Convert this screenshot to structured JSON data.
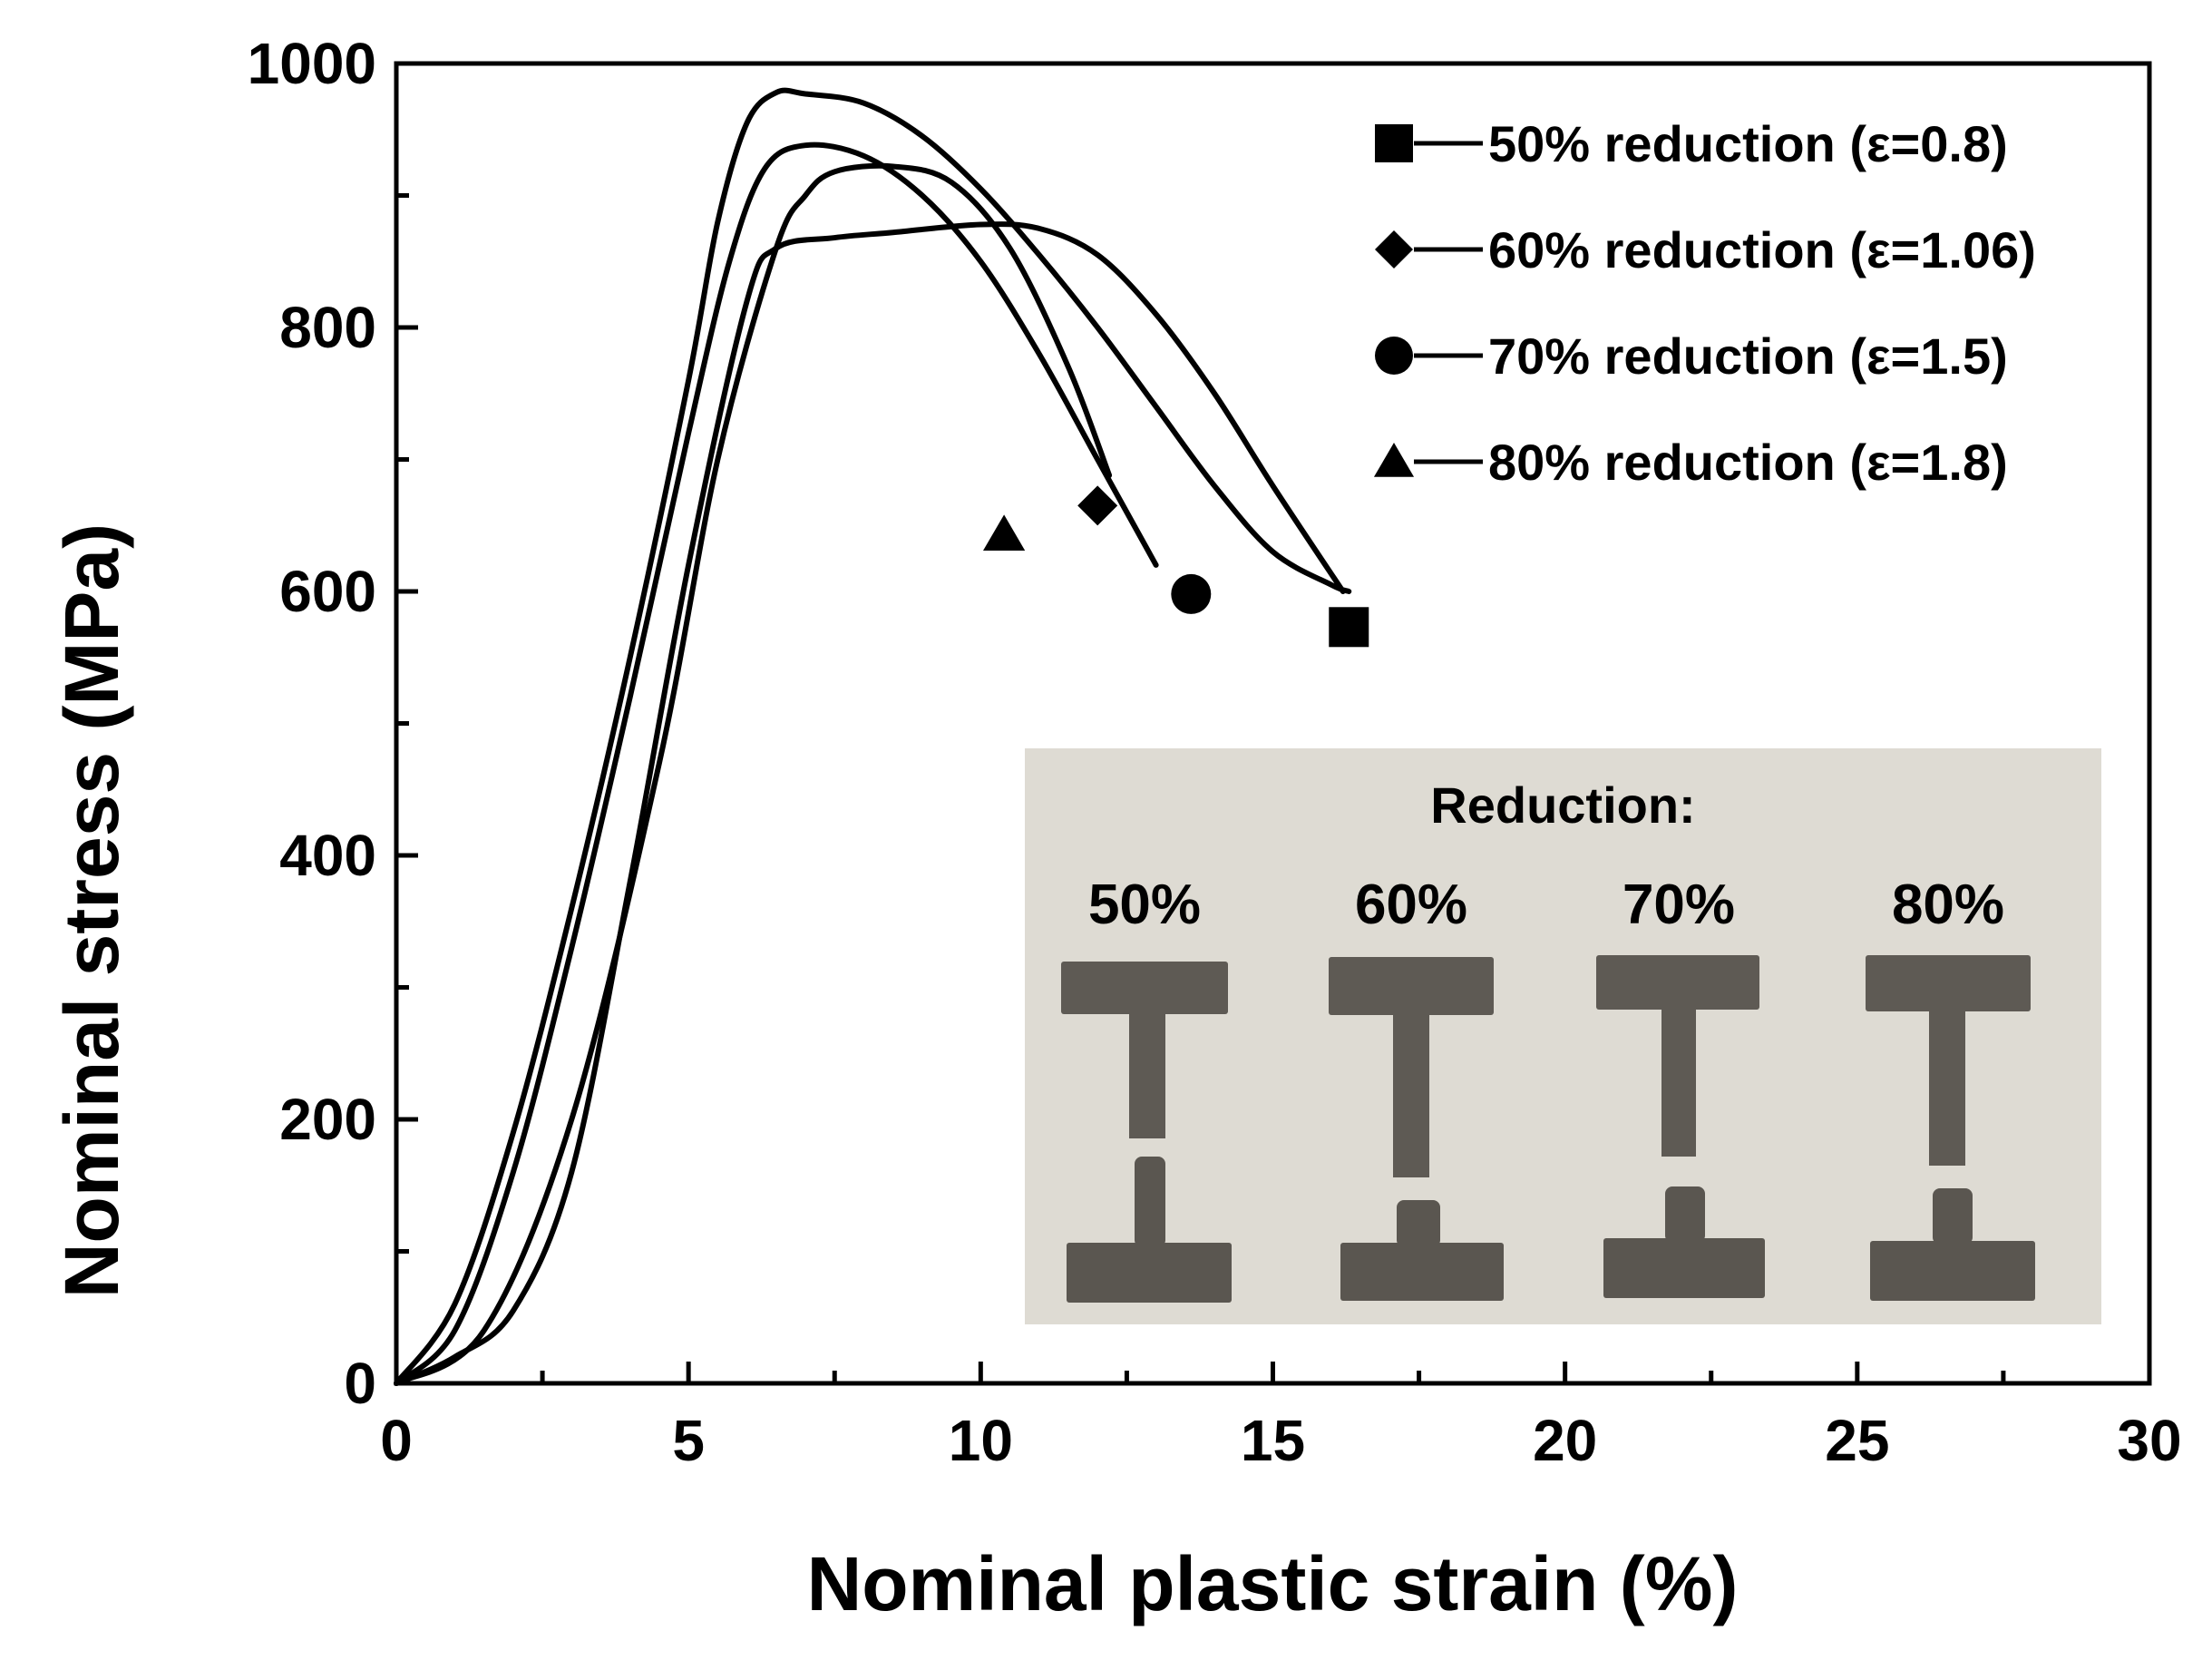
{
  "chart_data": {
    "type": "line",
    "xlabel": "Nominal plastic strain (%)",
    "ylabel": "Nominal stress (MPa)",
    "xlim": [
      0,
      30
    ],
    "ylim": [
      0,
      1000
    ],
    "x_ticks": [
      0,
      5,
      10,
      15,
      20,
      25,
      30
    ],
    "y_ticks": [
      0,
      200,
      400,
      600,
      800,
      1000
    ],
    "grid": false,
    "legend_position": "top-right",
    "series": [
      {
        "name": "50% reduction (ε=0.8)",
        "marker": "square",
        "marker_point": [
          16.3,
          573
        ],
        "x": [
          0,
          1,
          2,
          3,
          4,
          5,
          5.5,
          6.0,
          6.5,
          7,
          8,
          9,
          10,
          11,
          12,
          13,
          14,
          15,
          16,
          16.3
        ],
        "y": [
          0,
          60,
          190,
          360,
          550,
          760,
          880,
          955,
          978,
          977,
          970,
          945,
          905,
          855,
          800,
          740,
          680,
          630,
          605,
          600
        ]
      },
      {
        "name": "60% reduction (ε=1.06)",
        "marker": "diamond",
        "marker_point": [
          12.0,
          665
        ],
        "x": [
          0,
          1.5,
          3.0,
          4.5,
          5.5,
          6.5,
          7.0,
          7.5,
          8.5,
          9.5,
          10.5,
          11.5,
          12.2
        ],
        "y": [
          0,
          40,
          200,
          470,
          700,
          860,
          900,
          918,
          922,
          910,
          860,
          770,
          688
        ]
      },
      {
        "name": "70% reduction (ε=1.5)",
        "marker": "circle",
        "marker_point": [
          13.6,
          598
        ],
        "x": [
          0,
          1,
          2,
          3,
          4,
          5,
          5.7,
          6.3,
          7,
          8,
          9,
          10,
          11,
          12,
          13.0
        ],
        "y": [
          0,
          40,
          160,
          330,
          520,
          720,
          850,
          920,
          938,
          930,
          900,
          850,
          780,
          700,
          620
        ]
      },
      {
        "name": "80% reduction (ε=1.8)",
        "marker": "triangle",
        "marker_point": [
          10.4,
          643
        ],
        "x": [
          0,
          1,
          2,
          3,
          4,
          5,
          6,
          6.5,
          7.5,
          8.5,
          10,
          11,
          12,
          13,
          14,
          15,
          16.2
        ],
        "y": [
          0,
          20,
          55,
          160,
          380,
          620,
          820,
          860,
          868,
          872,
          878,
          875,
          855,
          810,
          750,
          680,
          600
        ]
      }
    ],
    "inset": {
      "title": "Reduction:",
      "labels": [
        "50%",
        "60%",
        "70%",
        "80%"
      ]
    }
  }
}
